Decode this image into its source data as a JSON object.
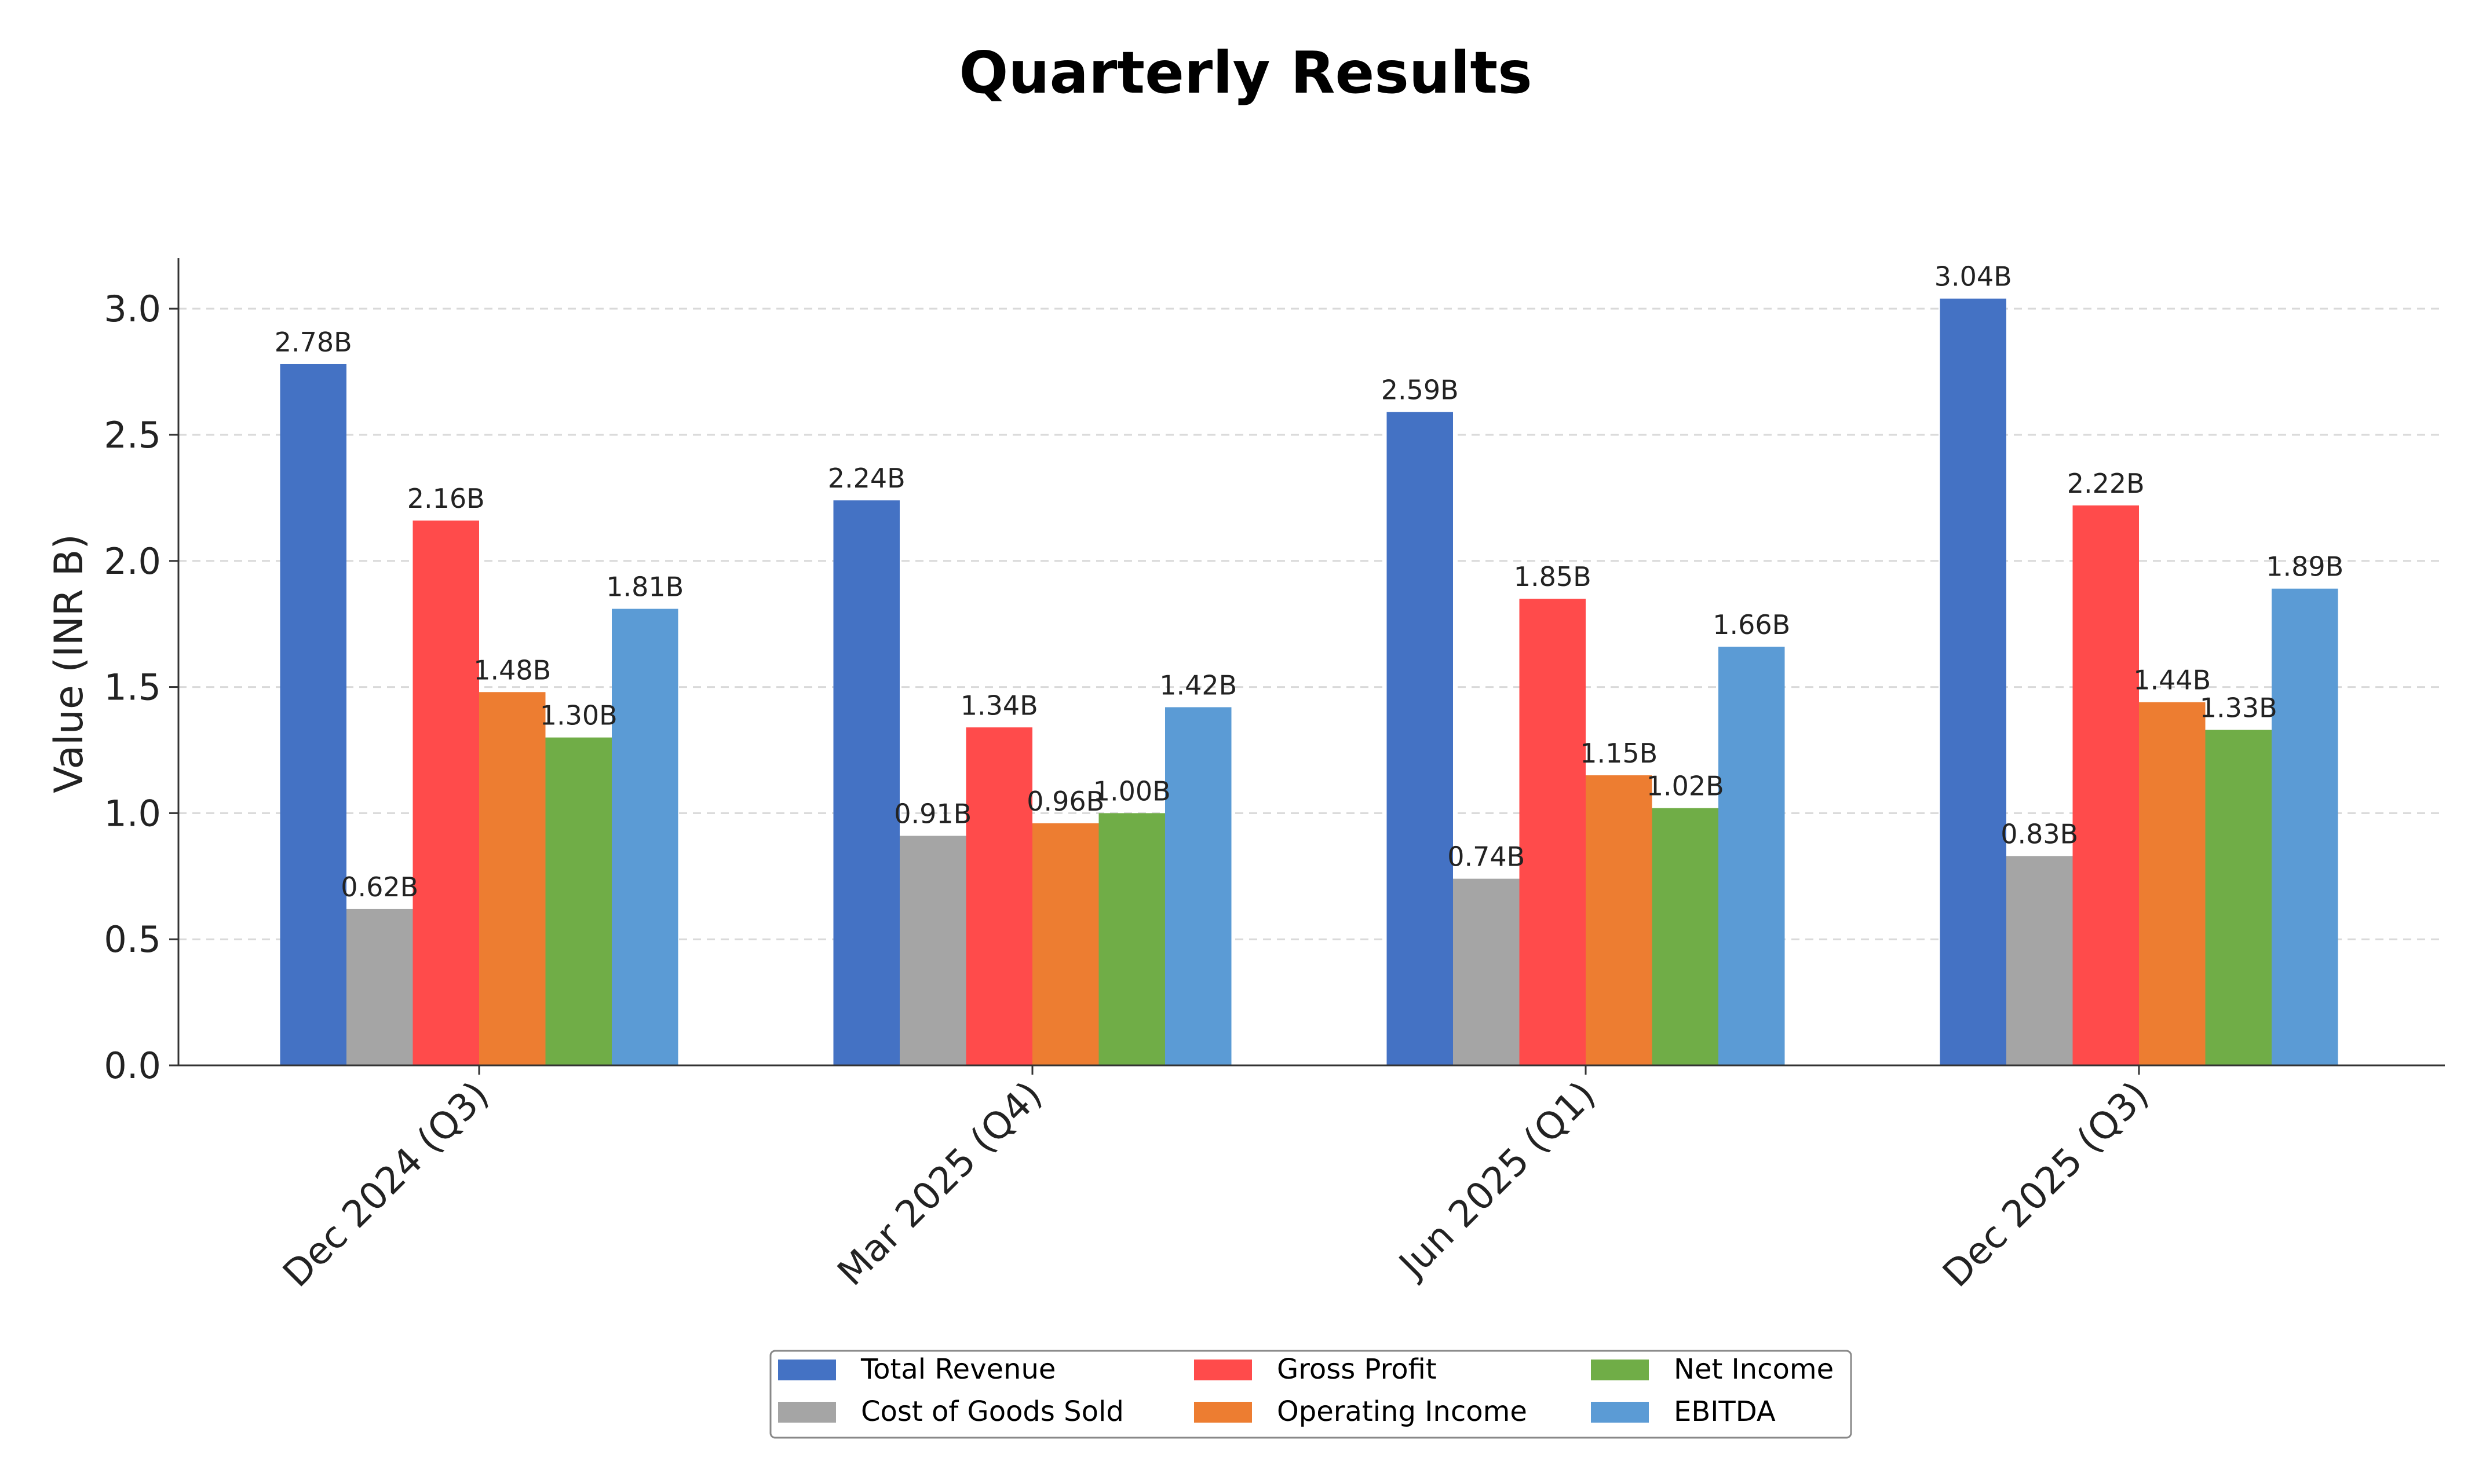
{
  "chart_data": {
    "type": "bar",
    "title": "Quarterly Results",
    "xlabel": "",
    "ylabel": "Value (INR B)",
    "ylim": [
      0,
      3.2
    ],
    "yticks": [
      "0.0",
      "0.5",
      "1.0",
      "1.5",
      "2.0",
      "2.5",
      "3.0"
    ],
    "grid": true,
    "legend_position": "bottom-center",
    "categories": [
      "Dec 2024 (Q3)",
      "Mar 2025 (Q4)",
      "Jun 2025 (Q1)",
      "Dec 2025 (Q3)"
    ],
    "series": [
      {
        "name": "Total Revenue",
        "color": "#4472C4",
        "values": [
          2.78,
          2.24,
          2.59,
          3.04
        ],
        "labels": [
          "2.78B",
          "2.24B",
          "2.59B",
          "3.04B"
        ]
      },
      {
        "name": "Cost of Goods Sold",
        "color": "#A5A5A5",
        "values": [
          0.62,
          0.91,
          0.74,
          0.83
        ],
        "labels": [
          "0.62B",
          "0.91B",
          "0.74B",
          "0.83B"
        ]
      },
      {
        "name": "Gross Profit",
        "color": "#FF4B4B",
        "values": [
          2.16,
          1.34,
          1.85,
          2.22
        ],
        "labels": [
          "2.16B",
          "1.34B",
          "1.85B",
          "2.22B"
        ]
      },
      {
        "name": "Operating Income",
        "color": "#ED7D31",
        "values": [
          1.48,
          0.96,
          1.15,
          1.44
        ],
        "labels": [
          "1.48B",
          "0.96B",
          "1.15B",
          "1.44B"
        ]
      },
      {
        "name": "Net Income",
        "color": "#70AD47",
        "values": [
          1.3,
          1.0,
          1.02,
          1.33
        ],
        "labels": [
          "1.30B",
          "1.00B",
          "1.02B",
          "1.33B"
        ]
      },
      {
        "name": "EBITDA",
        "color": "#5B9BD5",
        "values": [
          1.81,
          1.42,
          1.66,
          1.89
        ],
        "labels": [
          "1.81B",
          "1.42B",
          "1.66B",
          "1.89B"
        ]
      }
    ]
  }
}
